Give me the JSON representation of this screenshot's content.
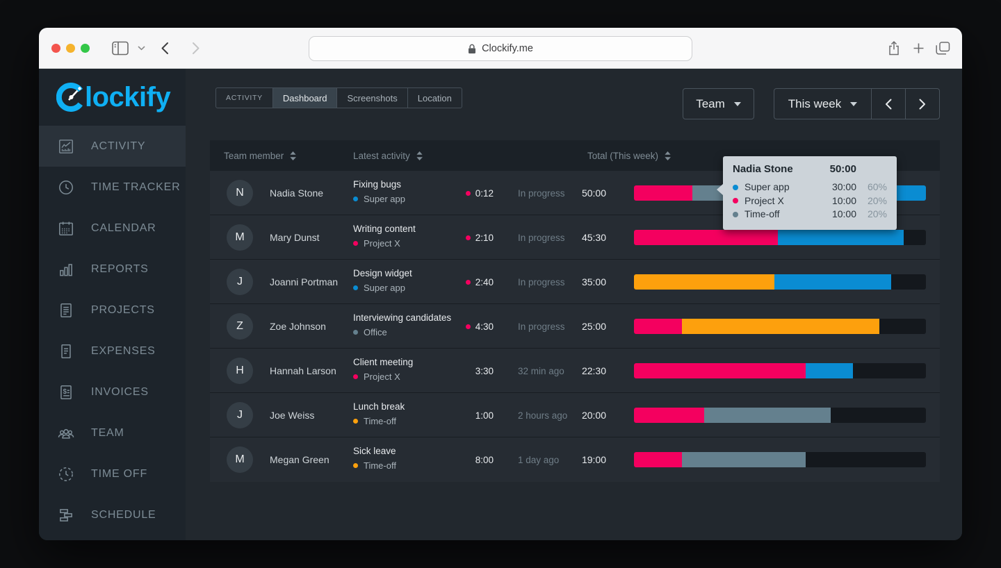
{
  "browser": {
    "url": "Clockify.me",
    "traffic_lights": [
      "close",
      "minimize",
      "zoom"
    ]
  },
  "logo": {
    "brand": "Clockify",
    "brand_rest": "lockify"
  },
  "colors": {
    "pink": "#f4005f",
    "blue": "#0a8cd2",
    "orange": "#fda00d",
    "slate": "#64808e",
    "brand_blue": "#0fb0f4",
    "track": "#14181d",
    "tooltip_bg": "#ccd3d9"
  },
  "sidebar": {
    "items": [
      {
        "label": "ACTIVITY",
        "icon": "activity-icon",
        "active": true
      },
      {
        "label": "TIME TRACKER",
        "icon": "time-tracker-icon",
        "active": false
      },
      {
        "label": "CALENDAR",
        "icon": "calendar-icon",
        "active": false
      },
      {
        "label": "REPORTS",
        "icon": "reports-icon",
        "active": false
      },
      {
        "label": "PROJECTS",
        "icon": "projects-icon",
        "active": false
      },
      {
        "label": "EXPENSES",
        "icon": "expenses-icon",
        "active": false
      },
      {
        "label": "INVOICES",
        "icon": "invoices-icon",
        "active": false
      },
      {
        "label": "TEAM",
        "icon": "team-icon",
        "active": false
      },
      {
        "label": "TIME OFF",
        "icon": "time-off-icon",
        "active": false
      },
      {
        "label": "SCHEDULE",
        "icon": "schedule-icon",
        "active": false
      }
    ]
  },
  "toolbar": {
    "group_label": "ACTIVITY",
    "tabs": [
      {
        "label": "Dashboard",
        "active": true
      },
      {
        "label": "Screenshots",
        "active": false
      },
      {
        "label": "Location",
        "active": false
      }
    ],
    "team_label": "Team",
    "period_label": "This week",
    "prev_label": "‹",
    "next_label": "›"
  },
  "table": {
    "headers": {
      "member": "Team member",
      "activity": "Latest activity",
      "total": "Total (This week)"
    },
    "rows": [
      {
        "initial": "N",
        "name": "Nadia Stone",
        "activity": "Fixing bugs",
        "project": "Super app",
        "project_color": "blue",
        "timer_active": true,
        "duration": "0:12",
        "status": "In progress",
        "total": "50:00",
        "bar": [
          {
            "color": "pink",
            "pct": 20
          },
          {
            "color": "slate",
            "pct": 20
          },
          {
            "color": "blue",
            "pct": 60
          }
        ]
      },
      {
        "initial": "M",
        "name": "Mary Dunst",
        "activity": "Writing content",
        "project": "Project X",
        "project_color": "pink",
        "timer_active": true,
        "duration": "2:10",
        "status": "In progress",
        "total": "45:30",
        "bar": [
          {
            "color": "pink",
            "pct": 49.3
          },
          {
            "color": "blue",
            "pct": 43.1
          }
        ]
      },
      {
        "initial": "J",
        "name": "Joanni Portman",
        "activity": "Design widget",
        "project": "Super app",
        "project_color": "blue",
        "timer_active": true,
        "duration": "2:40",
        "status": "In progress",
        "total": "35:00",
        "bar": [
          {
            "color": "orange",
            "pct": 48
          },
          {
            "color": "blue",
            "pct": 40
          }
        ]
      },
      {
        "initial": "Z",
        "name": "Zoe Johnson",
        "activity": "Interviewing candidates",
        "project": "Office",
        "project_color": "slate",
        "timer_active": true,
        "duration": "4:30",
        "status": "In progress",
        "total": "25:00",
        "bar": [
          {
            "color": "pink",
            "pct": 16.5
          },
          {
            "color": "orange",
            "pct": 67.5
          }
        ]
      },
      {
        "initial": "H",
        "name": "Hannah Larson",
        "activity": "Client meeting",
        "project": "Project X",
        "project_color": "pink",
        "timer_active": false,
        "duration": "3:30",
        "status": "32 min ago",
        "total": "22:30",
        "bar": [
          {
            "color": "pink",
            "pct": 58.8
          },
          {
            "color": "blue",
            "pct": 16.2
          }
        ]
      },
      {
        "initial": "J",
        "name": "Joe Weiss",
        "activity": "Lunch break",
        "project": "Time-off",
        "project_color": "orange",
        "timer_active": false,
        "duration": "1:00",
        "status": "2 hours ago",
        "total": "20:00",
        "bar": [
          {
            "color": "pink",
            "pct": 24
          },
          {
            "color": "slate",
            "pct": 43.5
          }
        ]
      },
      {
        "initial": "M",
        "name": "Megan Green",
        "activity": "Sick leave",
        "project": "Time-off",
        "project_color": "orange",
        "timer_active": false,
        "duration": "8:00",
        "status": "1 day ago",
        "total": "19:00",
        "bar": [
          {
            "color": "pink",
            "pct": 16.4
          },
          {
            "color": "slate",
            "pct": 42.4
          }
        ]
      }
    ]
  },
  "tooltip": {
    "name": "Nadia Stone",
    "total": "50:00",
    "items": [
      {
        "label": "Super app",
        "color": "blue",
        "time": "30:00",
        "pct": "60%"
      },
      {
        "label": "Project X",
        "color": "pink",
        "time": "10:00",
        "pct": "20%"
      },
      {
        "label": "Time-off",
        "color": "slate",
        "time": "10:00",
        "pct": "20%"
      }
    ]
  }
}
